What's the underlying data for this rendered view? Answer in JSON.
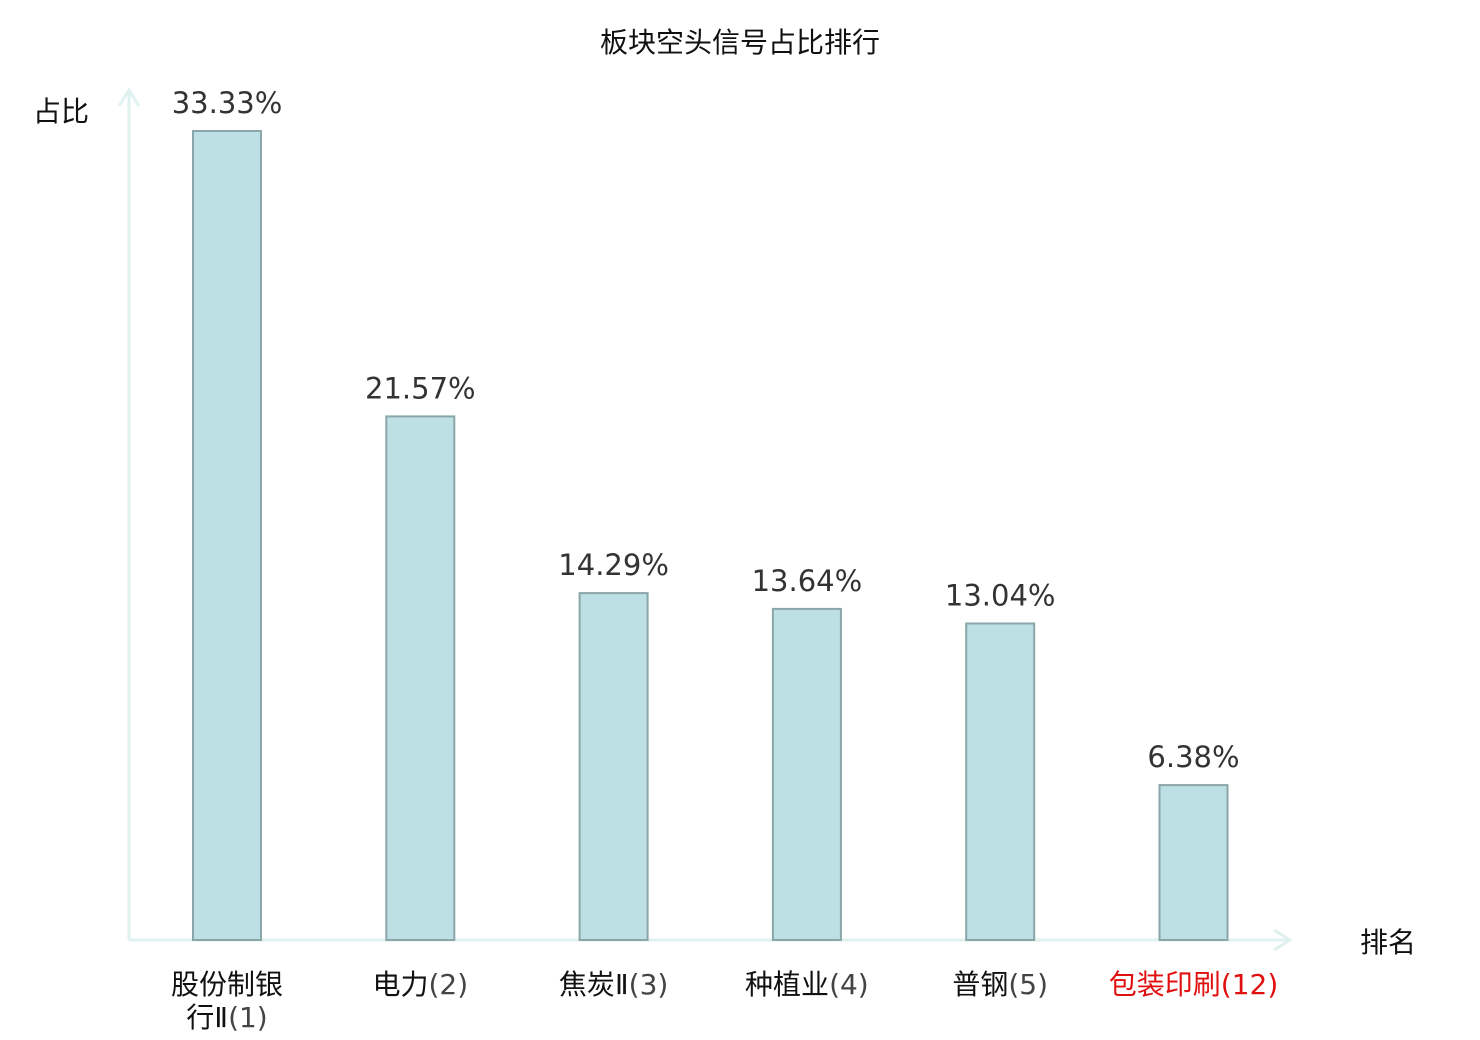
{
  "chart_data": {
    "type": "bar",
    "title": "板块空头信号占比排行",
    "ylabel": "占比",
    "xlabel": "排名",
    "categories": [
      {
        "name_lines": [
          "股份制银",
          "行Ⅱ"
        ],
        "rank": "(1)",
        "highlight": false
      },
      {
        "name_lines": [
          "电力"
        ],
        "rank": "(2)",
        "highlight": false
      },
      {
        "name_lines": [
          "焦炭Ⅱ"
        ],
        "rank": "(3)",
        "highlight": false
      },
      {
        "name_lines": [
          "种植业"
        ],
        "rank": "(4)",
        "highlight": false
      },
      {
        "name_lines": [
          "普钢"
        ],
        "rank": "(5)",
        "highlight": false
      },
      {
        "name_lines": [
          "包装印刷"
        ],
        "rank": "(12)",
        "highlight": true
      }
    ],
    "values": [
      33.33,
      21.57,
      14.29,
      13.64,
      13.04,
      6.38
    ],
    "value_labels": [
      "33.33%",
      "21.57%",
      "14.29%",
      "13.64%",
      "13.04%",
      "6.38%"
    ],
    "ylim": [
      0,
      33.33
    ],
    "grid": false,
    "colors": {
      "bar_fill": "#bce0e3",
      "bar_stroke": "#8aa6a8",
      "axis": "#e0f2ef",
      "label_text": "#111111",
      "rank_text": "#444444",
      "highlight": "#e01010"
    }
  }
}
